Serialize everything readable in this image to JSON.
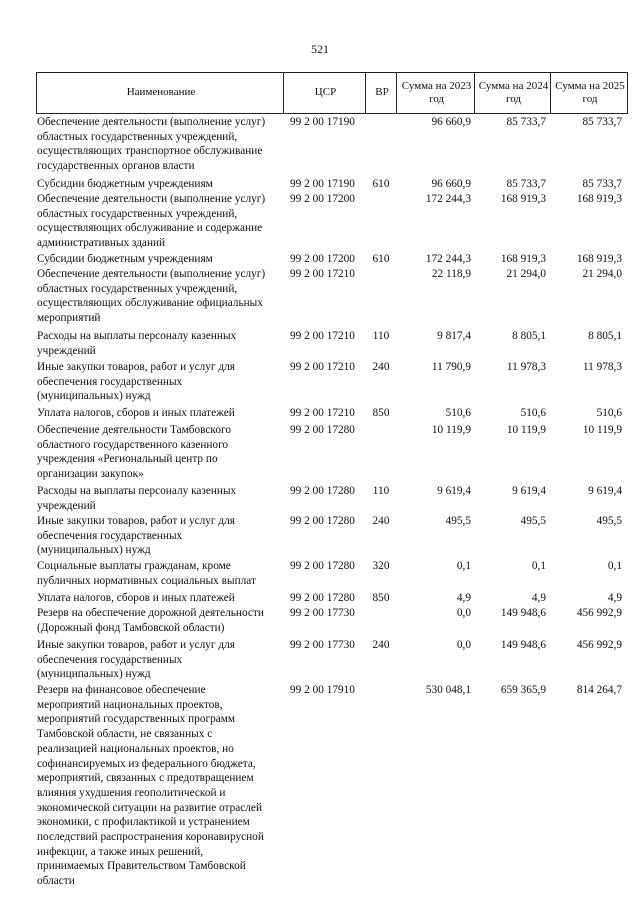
{
  "page_number": "521",
  "table": {
    "header": [
      "Наименование",
      "ЦСР",
      "ВР",
      "Сумма на 2023 год",
      "Сумма на 2024 год",
      "Сумма на 2025 год"
    ],
    "rows": [
      {
        "name": [
          "Обеспечение деятельности (выполнение услуг)",
          "областных государственных учреждений,",
          "осуществляющих транспортное обслуживание",
          "государственных органов власти"
        ],
        "csr": "99 2 00 17190",
        "amounts": [
          "96 660,9",
          "85 733,7",
          "85 733,7"
        ]
      },
      {
        "name": [
          "Субсидии бюджетным учреждениям"
        ],
        "csr": "99 2 00 17190",
        "vr": "610",
        "amounts": [
          "96 660,9",
          "85 733,7",
          "85 733,7"
        ]
      },
      {
        "name": [
          "Обеспечение деятельности (выполнение услуг)",
          "областных государственных учреждений,",
          "осуществляющих обслуживание и содержание",
          "административных зданий"
        ],
        "csr": "99 2 00 17200",
        "amounts": [
          "172 244,3",
          "168 919,3",
          "168 919,3"
        ]
      },
      {
        "name": [
          "Субсидии бюджетным учреждениям"
        ],
        "csr": "99 2 00 17200",
        "vr": "610",
        "amounts": [
          "172 244,3",
          "168 919,3",
          "168 919,3"
        ]
      },
      {
        "name": [
          "Обеспечение деятельности (выполнение услуг)",
          "областных государственных учреждений,",
          "осуществляющих обслуживание официальных",
          "мероприятий"
        ],
        "csr": "99 2 00 17210",
        "amounts": [
          "22 118,9",
          "21 294,0",
          "21 294,0"
        ]
      },
      {
        "name": [
          "Расходы на выплаты персоналу казенных",
          "учреждений"
        ],
        "csr": "99 2 00 17210",
        "vr": "110",
        "amounts": [
          "9 817,4",
          "8 805,1",
          "8 805,1"
        ]
      },
      {
        "name": [
          "Иные закупки товаров, работ и услуг для",
          "обеспечения государственных",
          "(муниципальных) нужд"
        ],
        "csr": "99 2 00 17210",
        "vr": "240",
        "amounts": [
          "11 790,9",
          "11 978,3",
          "11 978,3"
        ]
      },
      {
        "name": [
          "Уплата налогов, сборов и иных платежей"
        ],
        "csr": "99 2 00 17210",
        "vr": "850",
        "amounts": [
          "510,6",
          "510,6",
          "510,6"
        ]
      },
      {
        "name": [
          "Обеспечение деятельности Тамбовского",
          "областного государственного казенного",
          "учреждения «Региональный центр по",
          "организации закупок»"
        ],
        "csr": "99 2 00 17280",
        "amounts": [
          "10 119,9",
          "10 119,9",
          "10 119,9"
        ]
      },
      {
        "name": [
          "Расходы на выплаты персоналу казенных",
          "учреждений"
        ],
        "csr": "99 2 00 17280",
        "vr": "110",
        "amounts": [
          "9 619,4",
          "9 619,4",
          "9 619,4"
        ]
      },
      {
        "name": [
          "Иные закупки товаров, работ и услуг для",
          "обеспечения государственных",
          "(муниципальных) нужд"
        ],
        "csr": "99 2 00 17280",
        "vr": "240",
        "amounts": [
          "495,5",
          "495,5",
          "495,5"
        ]
      },
      {
        "name": [
          "Социальные выплаты гражданам, кроме",
          "публичных нормативных социальных выплат"
        ],
        "csr": "99 2 00 17280",
        "vr": "320",
        "amounts": [
          "0,1",
          "0,1",
          "0,1"
        ]
      },
      {
        "name": [
          "Уплата налогов, сборов и иных платежей"
        ],
        "csr": "99 2 00 17280",
        "vr": "850",
        "amounts": [
          "4,9",
          "4,9",
          "4,9"
        ]
      },
      {
        "name": [
          "Резерв на обеспечение дорожной деятельности",
          "(Дорожный фонд Тамбовской области)"
        ],
        "csr": "99 2 00 17730",
        "amounts": [
          "0,0",
          "149 948,6",
          "456 992,9"
        ]
      },
      {
        "name": [
          "Иные закупки товаров, работ и услуг для",
          "обеспечения государственных",
          "(муниципальных) нужд"
        ],
        "csr": "99 2 00 17730",
        "vr": "240",
        "amounts": [
          "0,0",
          "149 948,6",
          "456 992,9"
        ]
      },
      {
        "name": [
          "Резерв на финансовое обеспечение",
          "мероприятий национальных проектов,",
          "мероприятий государственных программ",
          "Тамбовской области, не связанных с",
          "реализацией национальных проектов, но",
          "софинансируемых из федерального бюджета,",
          "мероприятий, связанных с предотвращением",
          "влияния ухудшения геополитической и",
          "экономической ситуации на развитие отраслей",
          "экономики, с профилактикой и устранением",
          "последствий распространения коронавирусной",
          "инфекции, а также иных решений,",
          "принимаемых Правительством Тамбовской",
          "области"
        ],
        "csr": "99 2 00 17910",
        "amounts": [
          "530 048,1",
          "659 365,9",
          "814 264,7"
        ]
      }
    ]
  }
}
